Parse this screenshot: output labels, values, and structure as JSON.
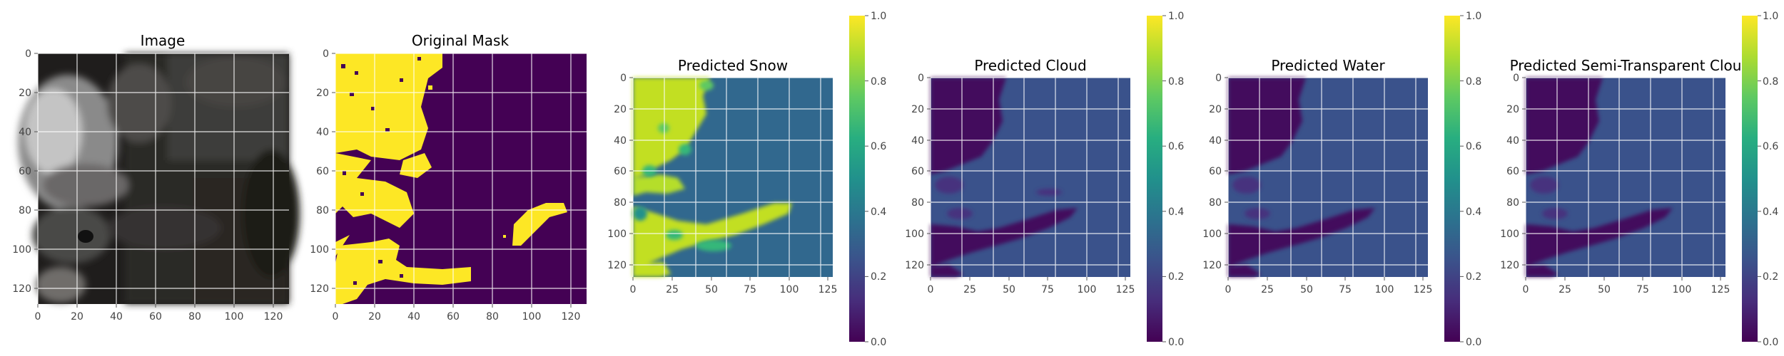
{
  "chart_data": [
    {
      "type": "heatmap",
      "title": "Image",
      "content": "rgb-image",
      "xticks": [
        "0",
        "20",
        "40",
        "60",
        "80",
        "100",
        "120"
      ],
      "yticks": [
        "0",
        "20",
        "40",
        "60",
        "80",
        "100",
        "120"
      ],
      "xlim": [
        0,
        128
      ],
      "ylim": [
        128,
        0
      ],
      "grid": true,
      "colorbar": false
    },
    {
      "type": "heatmap",
      "title": "Original Mask",
      "content": "binary-mask",
      "colormap": "viridis",
      "value_range": [
        0,
        1
      ],
      "xticks": [
        "0",
        "20",
        "40",
        "60",
        "80",
        "100",
        "120"
      ],
      "yticks": [
        "0",
        "20",
        "40",
        "60",
        "80",
        "100",
        "120"
      ],
      "xlim": [
        0,
        128
      ],
      "ylim": [
        128,
        0
      ],
      "grid": true,
      "colorbar": false
    },
    {
      "type": "heatmap",
      "title": "Predicted Snow",
      "content": "probability-map",
      "colormap": "viridis",
      "background_value": 0.33,
      "feature_value": 0.92,
      "xticks": [
        "0",
        "25",
        "50",
        "75",
        "100",
        "125"
      ],
      "yticks": [
        "0",
        "20",
        "40",
        "60",
        "80",
        "100",
        "120"
      ],
      "xlim": [
        0,
        128
      ],
      "ylim": [
        128,
        0
      ],
      "grid": true,
      "colorbar": {
        "ticks": [
          "0.0",
          "0.2",
          "0.4",
          "0.6",
          "0.8",
          "1.0"
        ],
        "range": [
          0,
          1
        ]
      }
    },
    {
      "type": "heatmap",
      "title": "Predicted Cloud",
      "content": "probability-map",
      "colormap": "viridis",
      "background_value": 0.24,
      "feature_value": 0.04,
      "xticks": [
        "0",
        "25",
        "50",
        "75",
        "100",
        "125"
      ],
      "yticks": [
        "0",
        "20",
        "40",
        "60",
        "80",
        "100",
        "120"
      ],
      "xlim": [
        0,
        128
      ],
      "ylim": [
        128,
        0
      ],
      "grid": true,
      "colorbar": {
        "ticks": [
          "0.0",
          "0.2",
          "0.4",
          "0.6",
          "0.8",
          "1.0"
        ],
        "range": [
          0,
          1
        ]
      }
    },
    {
      "type": "heatmap",
      "title": "Predicted Water",
      "content": "probability-map",
      "colormap": "viridis",
      "background_value": 0.24,
      "feature_value": 0.03,
      "xticks": [
        "0",
        "25",
        "50",
        "75",
        "100",
        "125"
      ],
      "yticks": [
        "0",
        "20",
        "40",
        "60",
        "80",
        "100",
        "120"
      ],
      "xlim": [
        0,
        128
      ],
      "ylim": [
        128,
        0
      ],
      "grid": true,
      "colorbar": {
        "ticks": [
          "0.0",
          "0.2",
          "0.4",
          "0.6",
          "0.8",
          "1.0"
        ],
        "range": [
          0,
          1
        ]
      }
    },
    {
      "type": "heatmap",
      "title": "Predicted Semi-Transparent Clou",
      "content": "probability-map",
      "colormap": "viridis",
      "background_value": 0.24,
      "feature_value": 0.04,
      "xticks": [
        "0",
        "25",
        "50",
        "75",
        "100",
        "125"
      ],
      "yticks": [
        "0",
        "20",
        "40",
        "60",
        "80",
        "100",
        "120"
      ],
      "xlim": [
        0,
        128
      ],
      "ylim": [
        128,
        0
      ],
      "grid": true,
      "colorbar": {
        "ticks": [
          "0.0",
          "0.2",
          "0.4",
          "0.6",
          "0.8",
          "1.0"
        ],
        "range": [
          0,
          1
        ]
      }
    }
  ]
}
